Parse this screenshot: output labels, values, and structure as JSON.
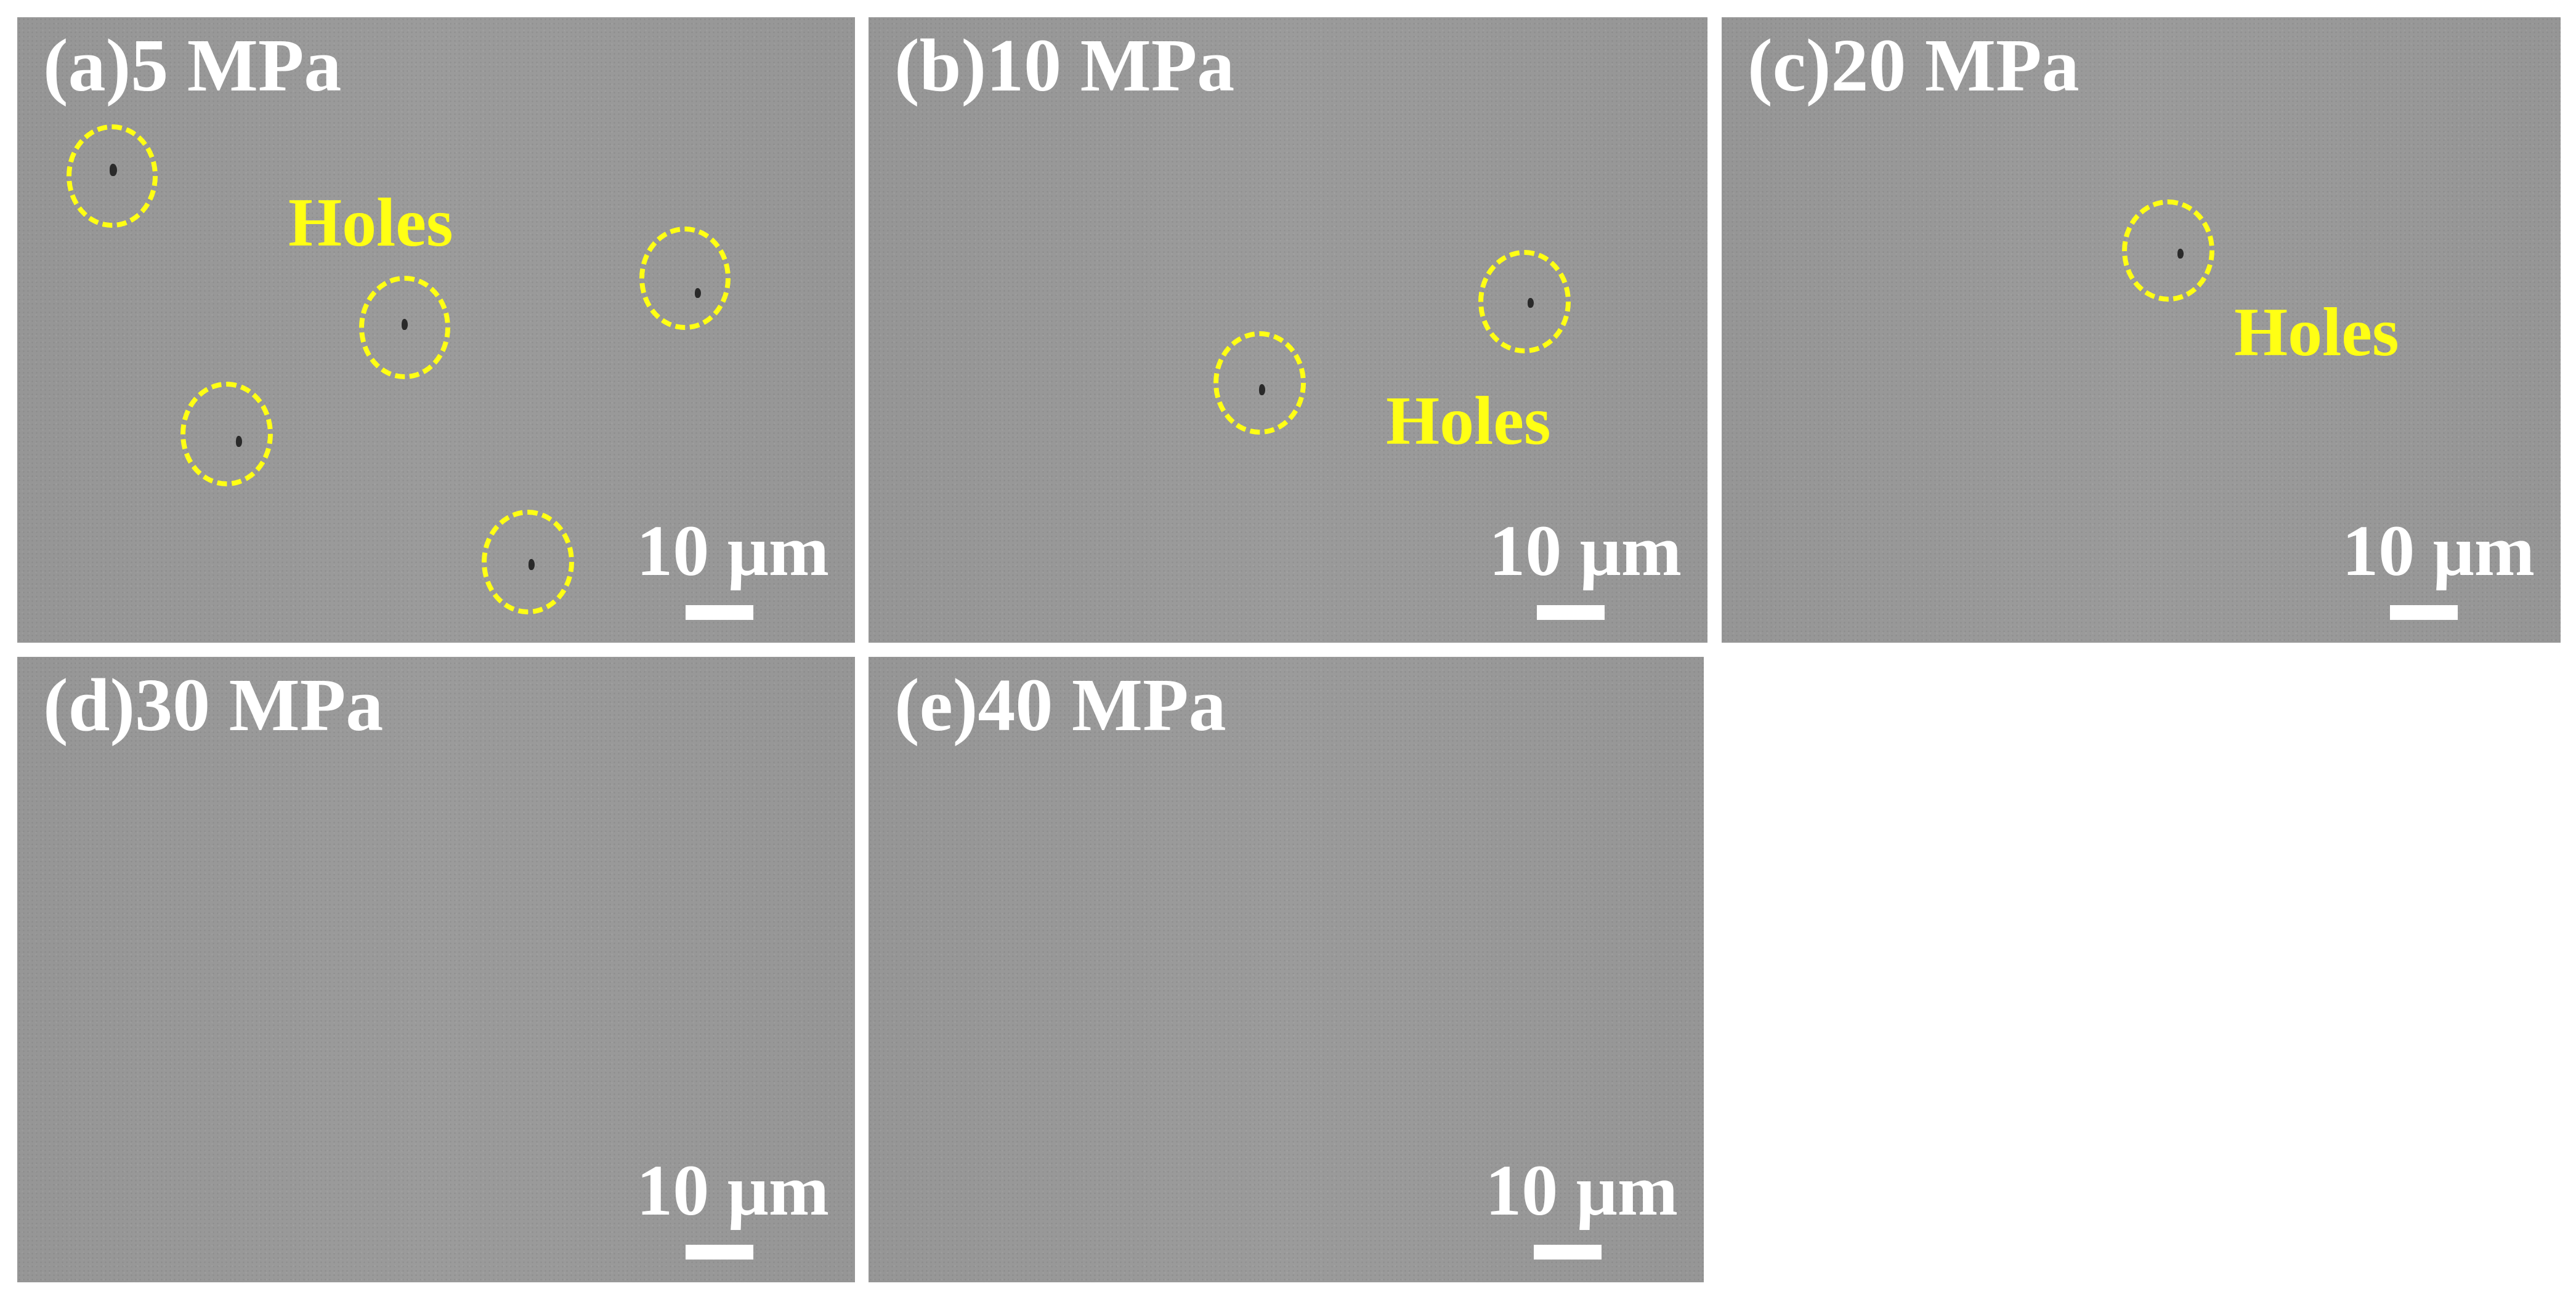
{
  "scale_label": "10 μm",
  "holes_label": "Holes",
  "colors": {
    "annotation": "#ffff14",
    "label": "#ffffff",
    "background": "#999999"
  },
  "panels": [
    {
      "label": "(a)5 MPa",
      "holes_count": 5
    },
    {
      "label": "(b)10 MPa",
      "holes_count": 2
    },
    {
      "label": "(c)20 MPa",
      "holes_count": 1
    },
    {
      "label": "(d)30 MPa",
      "holes_count": 0
    },
    {
      "label": "(e)40 MPa",
      "holes_count": 0
    }
  ]
}
